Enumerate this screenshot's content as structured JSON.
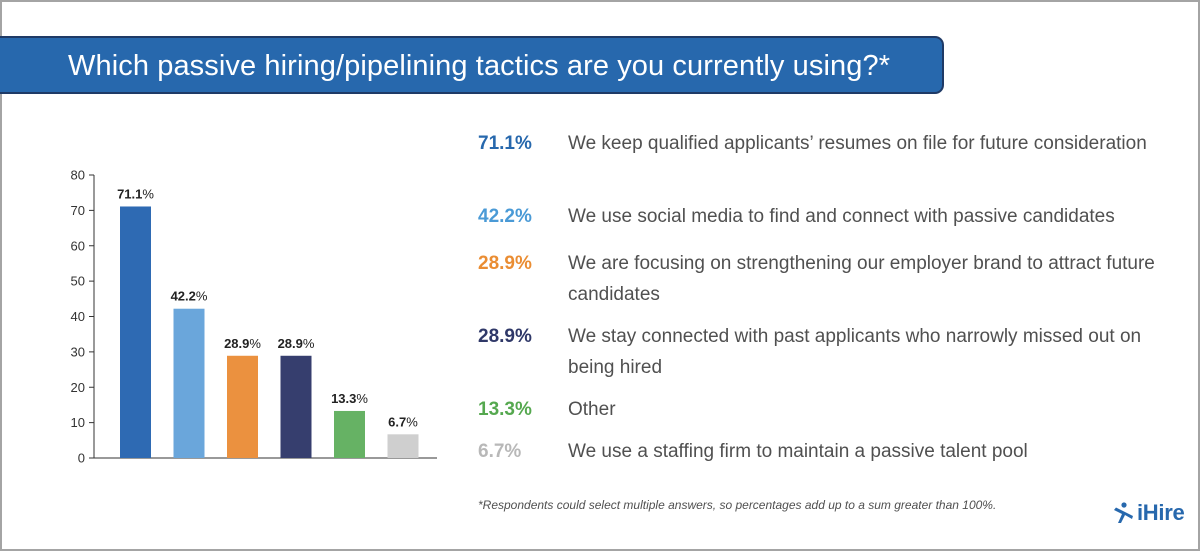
{
  "title": "Which passive hiring/pipelining tactics are you currently using?*",
  "chart_data": {
    "type": "bar",
    "categories": [
      "We keep qualified applicants’ resumes on file for future consideration",
      "We use social media to find and connect with passive candidates",
      "We are focusing on strengthening our employer brand to attract future candidates",
      "We stay connected with past applicants who narrowly missed out on being hired",
      "Other",
      "We use a staffing firm to maintain a passive talent pool"
    ],
    "values": [
      71.1,
      42.2,
      28.9,
      28.9,
      13.3,
      6.7
    ],
    "value_labels": [
      "71.1",
      "42.2",
      "28.9",
      "28.9",
      "13.3",
      "6.7"
    ],
    "unit_suffix": "%",
    "colors": [
      "#2e6ab3",
      "#6aa6db",
      "#eb913f",
      "#363e6e",
      "#66b264",
      "#cfcfcf"
    ],
    "yticks": [
      "0",
      "10",
      "20",
      "30",
      "40",
      "50",
      "60",
      "70",
      "80"
    ],
    "ylim": [
      0,
      80
    ],
    "grid": false
  },
  "legend": [
    {
      "pct": "71.1%",
      "text": "We keep qualified applicants’ resumes on file for future consideration",
      "color": "#2768ad"
    },
    {
      "pct": "42.2%",
      "text": "We use social media to find and connect with passive candidates",
      "color": "#4a9ad6"
    },
    {
      "pct": "28.9%",
      "text": "We are focusing on strengthening our employer brand to attract future candidates",
      "color": "#ea8d33"
    },
    {
      "pct": "28.9%",
      "text": "We stay connected with past applicants who narrowly missed out on being hired",
      "color": "#2f3868"
    },
    {
      "pct": "13.3%",
      "text": "Other",
      "color": "#55a84f"
    },
    {
      "pct": "6.7%",
      "text": "We use a staffing firm to maintain a passive talent pool",
      "color": "#b8b8b8"
    }
  ],
  "footnote": "*Respondents could select multiple answers, so percentages add up to a sum greater than 100%.",
  "logo": {
    "text": "iHire",
    "icon": "ihire-logo-icon",
    "color": "#2768ad"
  }
}
